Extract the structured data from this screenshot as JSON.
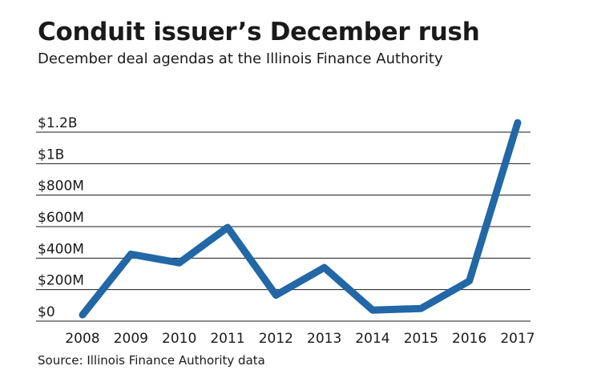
{
  "header": {
    "title": "Conduit issuer’s December rush",
    "subtitle": "December deal agendas at the Illinois Finance Authority"
  },
  "footer": {
    "source": "Source: Illinois Finance Authority data"
  },
  "chart_data": {
    "type": "line",
    "title": "Conduit issuer’s December rush",
    "subtitle": "December deal agendas at the Illinois Finance Authority",
    "xlabel": "",
    "ylabel": "",
    "x": [
      "2008",
      "2009",
      "2010",
      "2011",
      "2012",
      "2013",
      "2014",
      "2015",
      "2016",
      "2017"
    ],
    "series": [
      {
        "values": [
          40,
          425,
          370,
          595,
          165,
          340,
          70,
          80,
          255,
          1260
        ],
        "color": "#2267a6"
      }
    ],
    "ylim": [
      0,
      1200
    ],
    "yticks": [
      0,
      200,
      400,
      600,
      800,
      1000,
      1200
    ],
    "ytick_labels": [
      "$0",
      "$200M",
      "$400M",
      "$600M",
      "$800M",
      "$1B",
      "$1.2B"
    ],
    "grid": true,
    "legend": "none",
    "units": "USD (millions)"
  }
}
